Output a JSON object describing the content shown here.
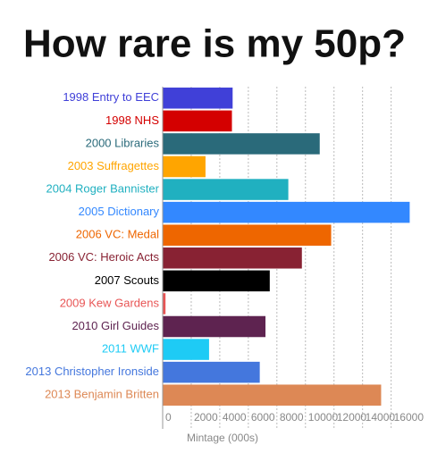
{
  "chart_data": {
    "type": "bar",
    "orientation": "horizontal",
    "title": "How rare is my 50p?",
    "x_label": "Mintage (000s)",
    "categories": [
      "1998 Entry to EEC",
      "1998 NHS",
      "2000 Libraries",
      "2003 Suffragettes",
      "2004 Roger Bannister",
      "2005 Dictionary",
      "2006 VC: Medal",
      "2006 VC: Heroic Acts",
      "2007 Scouts",
      "2009 Kew Gardens",
      "2010 Girl Guides",
      "2011 WWF",
      "2013 Christopher Ironside",
      "2013 Benjamin Britten"
    ],
    "values": [
      4900,
      4850,
      11000,
      3000,
      8800,
      17300,
      11800,
      9750,
      7500,
      200,
      7200,
      3250,
      6800,
      15300
    ],
    "colors": [
      "#4040d8",
      "#d40000",
      "#2a6a7a",
      "#ffa500",
      "#20b0c0",
      "#3388ff",
      "#ee6600",
      "#882233",
      "#000000",
      "#e85555",
      "#5e2350",
      "#1ecbf5",
      "#4477dd",
      "#dd8855"
    ],
    "xlim": [
      0,
      17400
    ],
    "xticks": [
      0,
      2000,
      4000,
      6000,
      8000,
      10000,
      12000,
      14000,
      16000
    ],
    "grid": true
  }
}
